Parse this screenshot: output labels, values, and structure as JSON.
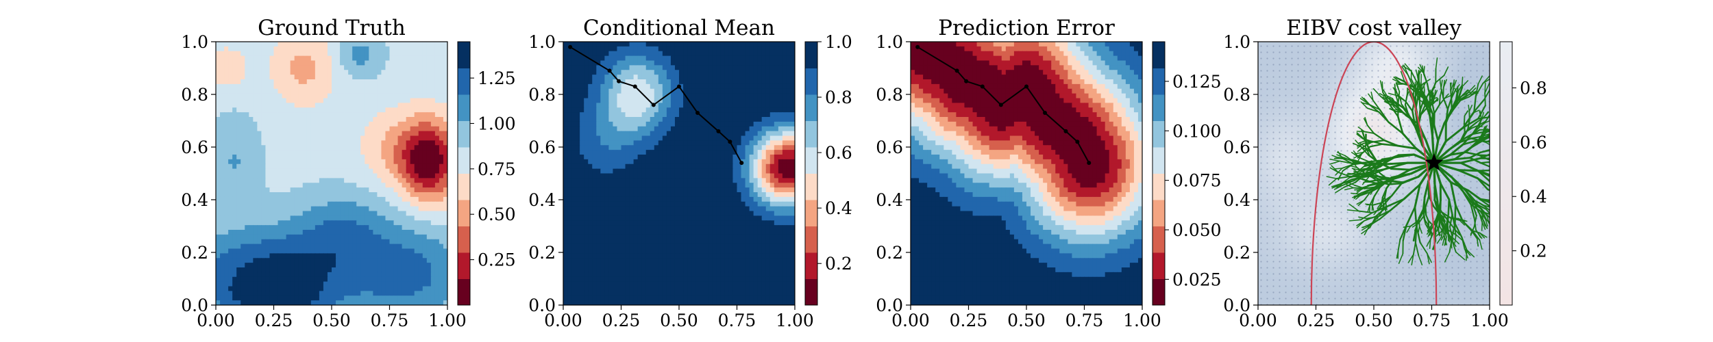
{
  "chart_data": [
    {
      "type": "heatmap",
      "title": "Ground Truth",
      "xlim": [
        0,
        1
      ],
      "ylim": [
        0,
        1
      ],
      "xticks": [
        "0.00",
        "0.25",
        "0.50",
        "0.75",
        "1.00"
      ],
      "yticks": [
        "0.0",
        "0.2",
        "0.4",
        "0.6",
        "0.8",
        "1.0"
      ],
      "colormap": "RdBu",
      "colorbar": {
        "range": [
          0.0,
          1.45
        ],
        "ticks": [
          "0.25",
          "0.50",
          "0.75",
          "1.00",
          "1.25"
        ],
        "tick_values": [
          0.25,
          0.5,
          0.75,
          1.0,
          1.25
        ],
        "levels": 10
      },
      "features": {
        "base": 0.82,
        "blobs": [
          {
            "x": 0.92,
            "y": 0.55,
            "amp": -0.8,
            "sx": 0.09,
            "sy": 0.11
          },
          {
            "x": 0.38,
            "y": 0.9,
            "amp": -0.28,
            "sx": 0.1,
            "sy": 0.1
          },
          {
            "x": 0.05,
            "y": 0.9,
            "amp": -0.2,
            "sx": 0.06,
            "sy": 0.06
          },
          {
            "x": 0.75,
            "y": 0.6,
            "amp": -0.2,
            "sx": 0.1,
            "sy": 0.1
          },
          {
            "x": 0.08,
            "y": 0.55,
            "amp": 0.2,
            "sx": 0.08,
            "sy": 0.12
          },
          {
            "x": 0.25,
            "y": 0.12,
            "amp": 0.55,
            "sx": 0.28,
            "sy": 0.12
          },
          {
            "x": 0.85,
            "y": 0.12,
            "amp": 0.35,
            "sx": 0.18,
            "sy": 0.13
          },
          {
            "x": 0.55,
            "y": 0.3,
            "amp": 0.25,
            "sx": 0.15,
            "sy": 0.1
          },
          {
            "x": 0.62,
            "y": 0.95,
            "amp": 0.25,
            "sx": 0.07,
            "sy": 0.06
          },
          {
            "x": 0.25,
            "y": 0.02,
            "amp": 0.3,
            "sx": 0.15,
            "sy": 0.05
          }
        ]
      }
    },
    {
      "type": "heatmap",
      "title": "Conditional Mean",
      "xlim": [
        0,
        1
      ],
      "ylim": [
        0,
        1
      ],
      "xticks": [
        "0.00",
        "0.25",
        "0.50",
        "0.75",
        "1.00"
      ],
      "yticks": [
        "0.0",
        "0.2",
        "0.4",
        "0.6",
        "0.8",
        "1.0"
      ],
      "colormap": "RdBu",
      "colorbar": {
        "range": [
          0.05,
          1.0
        ],
        "ticks": [
          "0.2",
          "0.4",
          "0.6",
          "0.8",
          "1.0"
        ],
        "tick_values": [
          0.2,
          0.4,
          0.6,
          0.8,
          1.0
        ],
        "levels": 10
      },
      "features": {
        "base": 1.0,
        "blobs": [
          {
            "x": 0.97,
            "y": 0.52,
            "amp": -0.93,
            "sx": 0.11,
            "sy": 0.1
          },
          {
            "x": 0.32,
            "y": 0.8,
            "amp": -0.45,
            "sx": 0.11,
            "sy": 0.11
          },
          {
            "x": 0.18,
            "y": 0.62,
            "amp": -0.15,
            "sx": 0.11,
            "sy": 0.11
          }
        ]
      },
      "path": [
        [
          0.03,
          0.98
        ],
        [
          0.2,
          0.89
        ],
        [
          0.24,
          0.85
        ],
        [
          0.31,
          0.83
        ],
        [
          0.39,
          0.76
        ],
        [
          0.5,
          0.83
        ],
        [
          0.58,
          0.73
        ],
        [
          0.67,
          0.66
        ],
        [
          0.72,
          0.62
        ],
        [
          0.77,
          0.54
        ]
      ]
    },
    {
      "type": "heatmap",
      "title": "Prediction Error",
      "xlim": [
        0,
        1
      ],
      "ylim": [
        0,
        1
      ],
      "xticks": [
        "0.00",
        "0.25",
        "0.50",
        "0.75",
        "1.00"
      ],
      "yticks": [
        "0.0",
        "0.2",
        "0.4",
        "0.6",
        "0.8",
        "1.0"
      ],
      "colormap": "RdBu",
      "colorbar": {
        "range": [
          0.012,
          0.145
        ],
        "ticks": [
          "0.025",
          "0.050",
          "0.075",
          "0.100",
          "0.125"
        ],
        "tick_values": [
          0.025,
          0.05,
          0.075,
          0.1,
          0.125
        ],
        "levels": 10
      },
      "features": {
        "base": 0.145,
        "drop": 0.133,
        "distance_scale": 0.2
      },
      "path": [
        [
          0.03,
          0.98
        ],
        [
          0.2,
          0.89
        ],
        [
          0.24,
          0.85
        ],
        [
          0.31,
          0.83
        ],
        [
          0.39,
          0.76
        ],
        [
          0.5,
          0.83
        ],
        [
          0.58,
          0.73
        ],
        [
          0.67,
          0.66
        ],
        [
          0.72,
          0.62
        ],
        [
          0.77,
          0.54
        ]
      ]
    },
    {
      "type": "heatmap",
      "title": "EIBV cost valley",
      "xlim": [
        0,
        1
      ],
      "ylim": [
        0,
        1
      ],
      "xticks": [
        "0.00",
        "0.25",
        "0.50",
        "0.75",
        "1.00"
      ],
      "yticks": [
        "0.0",
        "0.2",
        "0.4",
        "0.6",
        "0.8",
        "1.0"
      ],
      "colormap": "RdBu",
      "colorbar": {
        "range": [
          0.0,
          0.97
        ],
        "ticks": [
          "0.2",
          "0.4",
          "0.6",
          "0.8"
        ],
        "tick_values": [
          0.2,
          0.4,
          0.6,
          0.8
        ]
      },
      "features": {
        "base": 0.95,
        "blobs": [
          {
            "x": 0.5,
            "y": 0.65,
            "amp": -0.35,
            "sx": 0.13,
            "sy": 0.13
          },
          {
            "x": 0.6,
            "y": 0.92,
            "amp": -0.2,
            "sx": 0.12,
            "sy": 0.1
          },
          {
            "x": 0.12,
            "y": 0.55,
            "amp": -0.15,
            "sx": 0.1,
            "sy": 0.12
          },
          {
            "x": 0.3,
            "y": 0.28,
            "amp": -0.15,
            "sx": 0.15,
            "sy": 0.1
          },
          {
            "x": 0.92,
            "y": 0.28,
            "amp": 0.6,
            "sx": 0.06,
            "sy": 0.08
          },
          {
            "x": 0.95,
            "y": 0.78,
            "amp": 0.3,
            "sx": 0.05,
            "sy": 0.08
          }
        ]
      },
      "star": [
        0.76,
        0.54
      ],
      "budget_ellipse": {
        "center": [
          0.5,
          0.0
        ],
        "half_width": 0.27
      },
      "colors": {
        "tree": "#1b7a1b",
        "ellipse": "#cc4455",
        "star": "#000000",
        "grid": "#6e7fa0"
      }
    }
  ]
}
